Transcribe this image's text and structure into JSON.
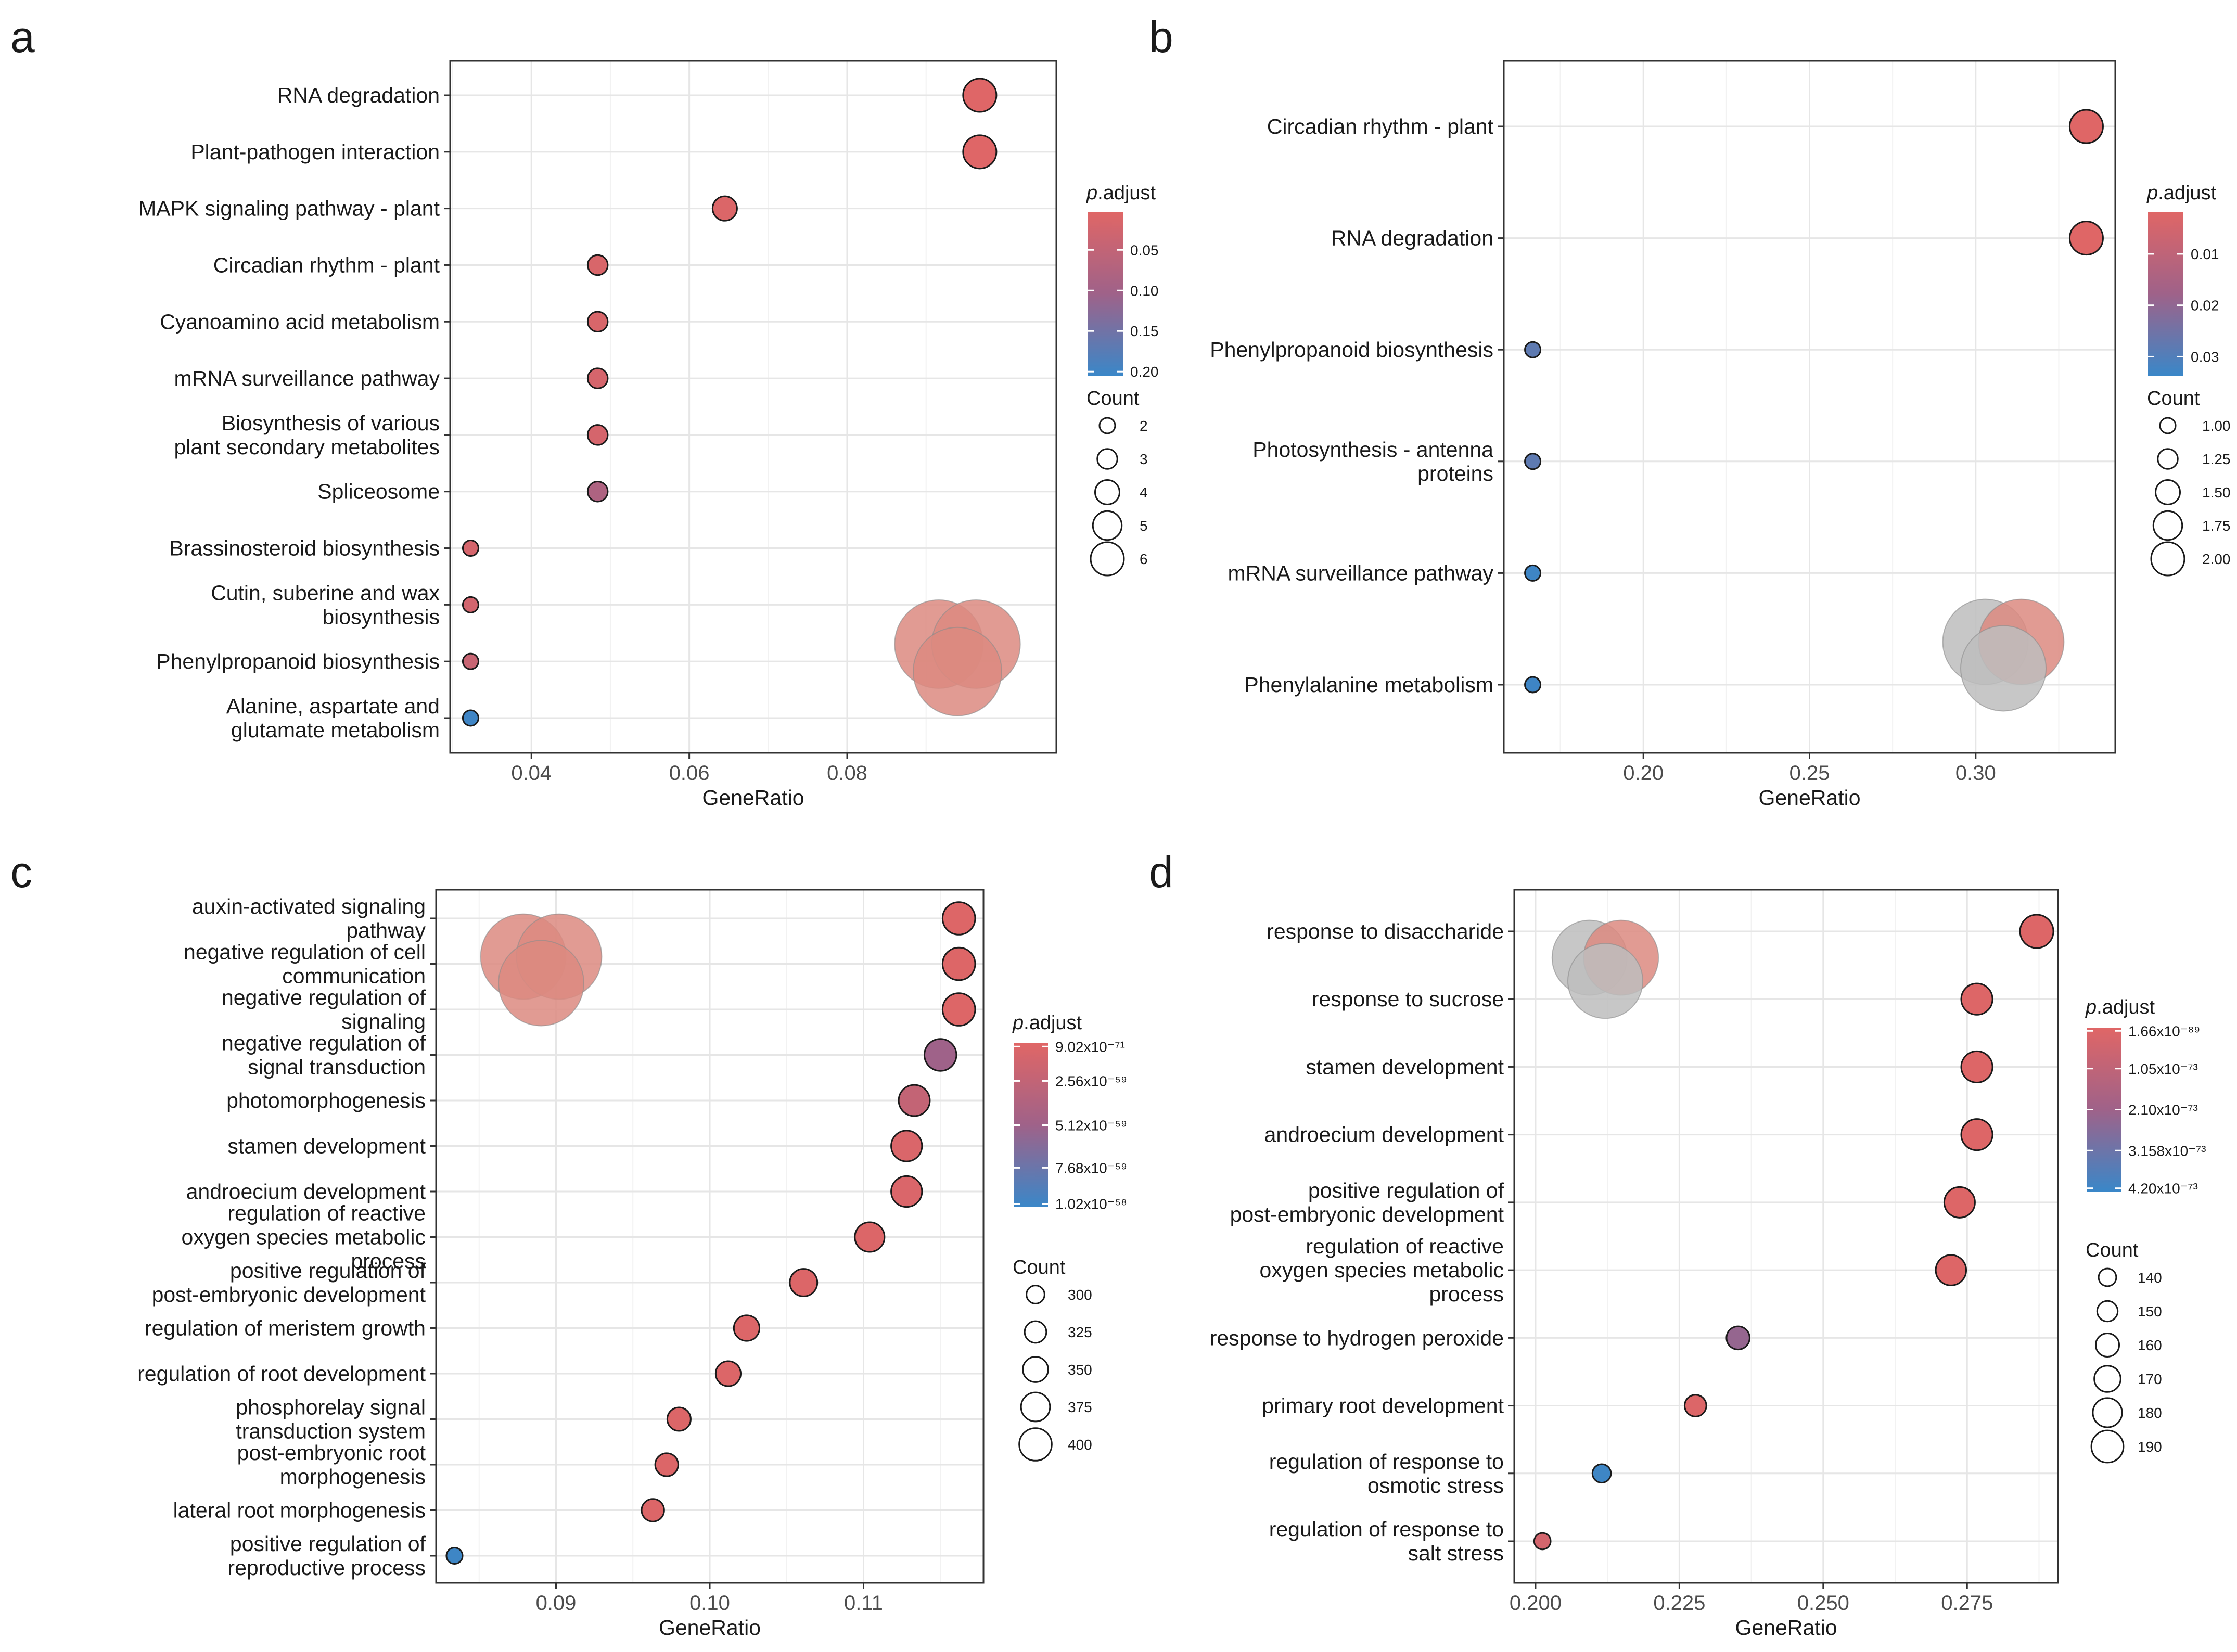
{
  "chart_data": [
    {
      "panel": "a",
      "type": "scatter",
      "xlabel": "GeneRatio",
      "xlim": [
        0.0297,
        0.1065
      ],
      "xticks": [
        0.04,
        0.06,
        0.08
      ],
      "xtick_labels": [
        "0.04",
        "0.06",
        "0.08"
      ],
      "colorbar": {
        "title": "p.adjust",
        "min": 0.003,
        "max": 0.205,
        "reverse": false,
        "ticks": [
          0.05,
          0.1,
          0.15,
          0.2
        ],
        "tick_labels": [
          "0.05",
          "0.10",
          "0.15",
          "0.20"
        ]
      },
      "size_legend": {
        "title": "Count",
        "min": 2,
        "max": 6,
        "values": [
          2,
          3,
          4,
          5,
          6
        ],
        "labels": [
          "2",
          "3",
          "4",
          "5",
          "6"
        ]
      },
      "venn_colors": [
        "#dc8a80",
        "#dc8a80",
        "#dc8a80"
      ],
      "points": [
        {
          "term": [
            "RNA degradation"
          ],
          "x": 0.0968,
          "padj": 0.005,
          "count": 6
        },
        {
          "term": [
            "Plant-pathogen interaction"
          ],
          "x": 0.0968,
          "padj": 0.005,
          "count": 6
        },
        {
          "term": [
            "MAPK signaling pathway - plant"
          ],
          "x": 0.0645,
          "padj": 0.01,
          "count": 4
        },
        {
          "term": [
            "Circadian rhythm - plant"
          ],
          "x": 0.0484,
          "padj": 0.015,
          "count": 3
        },
        {
          "term": [
            "Cyanoamino acid metabolism"
          ],
          "x": 0.0484,
          "padj": 0.015,
          "count": 3
        },
        {
          "term": [
            "mRNA surveillance pathway"
          ],
          "x": 0.0484,
          "padj": 0.02,
          "count": 3
        },
        {
          "term": [
            "Biosynthesis of various",
            "plant secondary metabolites"
          ],
          "x": 0.0484,
          "padj": 0.02,
          "count": 3
        },
        {
          "term": [
            "Spliceosome"
          ],
          "x": 0.0484,
          "padj": 0.08,
          "count": 3
        },
        {
          "term": [
            "Brassinosteroid biosynthesis"
          ],
          "x": 0.0323,
          "padj": 0.02,
          "count": 2
        },
        {
          "term": [
            "Cutin, suberine and wax",
            "biosynthesis"
          ],
          "x": 0.0323,
          "padj": 0.025,
          "count": 2
        },
        {
          "term": [
            "Phenylpropanoid biosynthesis"
          ],
          "x": 0.0323,
          "padj": 0.04,
          "count": 2
        },
        {
          "term": [
            "Alanine, aspartate and",
            "glutamate metabolism"
          ],
          "x": 0.0323,
          "padj": 0.2,
          "count": 2
        }
      ]
    },
    {
      "panel": "b",
      "type": "scatter",
      "xlabel": "GeneRatio",
      "xlim": [
        0.158,
        0.342
      ],
      "xticks": [
        0.2,
        0.25,
        0.3
      ],
      "xtick_labels": [
        "0.20",
        "0.25",
        "0.30"
      ],
      "colorbar": {
        "title": "p.adjust",
        "min": 0.0018,
        "max": 0.0337,
        "reverse": false,
        "ticks": [
          0.01,
          0.02,
          0.03
        ],
        "tick_labels": [
          "0.01",
          "0.02",
          "0.03"
        ]
      },
      "size_legend": {
        "title": "Count",
        "min": 1,
        "max": 2,
        "values": [
          1.0,
          1.25,
          1.5,
          1.75,
          2.0
        ],
        "labels": [
          "1.00",
          "1.25",
          "1.50",
          "1.75",
          "2.00"
        ]
      },
      "venn_colors": [
        "#bdbdbd",
        "#dc8a80",
        "#bdbdbd"
      ],
      "points": [
        {
          "term": [
            "Circadian rhythm - plant"
          ],
          "x": 0.3333,
          "padj": 0.002,
          "count": 2
        },
        {
          "term": [
            "RNA degradation"
          ],
          "x": 0.3333,
          "padj": 0.002,
          "count": 2
        },
        {
          "term": [
            "Phenylpropanoid biosynthesis"
          ],
          "x": 0.1667,
          "padj": 0.028,
          "count": 1
        },
        {
          "term": [
            "Photosynthesis - antenna",
            "proteins"
          ],
          "x": 0.1667,
          "padj": 0.028,
          "count": 1
        },
        {
          "term": [
            "mRNA surveillance pathway"
          ],
          "x": 0.1667,
          "padj": 0.033,
          "count": 1
        },
        {
          "term": [
            "Phenylalanine metabolism"
          ],
          "x": 0.1667,
          "padj": 0.033,
          "count": 1
        }
      ]
    },
    {
      "panel": "c",
      "type": "scatter",
      "xlabel": "GeneRatio",
      "xlim": [
        0.0822,
        0.1178
      ],
      "xticks": [
        0.09,
        0.1,
        0.11
      ],
      "xtick_labels": [
        "0.09",
        "0.10",
        "0.11"
      ],
      "colorbar": {
        "title": "p.adjust",
        "min": 0,
        "max": 1,
        "reverse": false,
        "ticks": [
          0.02,
          0.23,
          0.5,
          0.76,
          0.98
        ],
        "tick_labels": [
          "9.02x10⁻⁷¹",
          "2.56x10⁻⁵⁹",
          "5.12x10⁻⁵⁹",
          "7.68x10⁻⁵⁹",
          "1.02x10⁻⁵⁸"
        ]
      },
      "size_legend": {
        "title": "Count",
        "min": 283,
        "max": 405,
        "values": [
          300,
          325,
          350,
          375,
          400
        ],
        "labels": [
          "300",
          "325",
          "350",
          "375",
          "400"
        ]
      },
      "venn_colors": [
        "#dc8a80",
        "#dc8a80",
        "#dc8a80"
      ],
      "points": [
        {
          "term": [
            "auxin-activated signaling",
            "pathway"
          ],
          "x": 0.1162,
          "padj": 0.02,
          "count": 400
        },
        {
          "term": [
            "negative regulation of cell",
            "communication"
          ],
          "x": 0.1162,
          "padj": 0.02,
          "count": 400
        },
        {
          "term": [
            "negative regulation of",
            "signaling"
          ],
          "x": 0.1162,
          "padj": 0.02,
          "count": 400
        },
        {
          "term": [
            "negative regulation of",
            "signal transduction"
          ],
          "x": 0.115,
          "padj": 0.5,
          "count": 396
        },
        {
          "term": [
            "photomorphogenesis"
          ],
          "x": 0.1133,
          "padj": 0.22,
          "count": 390
        },
        {
          "term": [
            "stamen development"
          ],
          "x": 0.1128,
          "padj": 0.05,
          "count": 388
        },
        {
          "term": [
            "androecium development"
          ],
          "x": 0.1128,
          "padj": 0.05,
          "count": 388
        },
        {
          "term": [
            "regulation of reactive",
            "oxygen species metabolic",
            "process"
          ],
          "x": 0.1104,
          "padj": 0.03,
          "count": 380
        },
        {
          "term": [
            "positive regulation of",
            "post-embryonic development"
          ],
          "x": 0.1061,
          "padj": 0.03,
          "count": 365
        },
        {
          "term": [
            "regulation of meristem growth"
          ],
          "x": 0.1024,
          "padj": 0.03,
          "count": 352
        },
        {
          "term": [
            "regulation of root development"
          ],
          "x": 0.1012,
          "padj": 0.03,
          "count": 348
        },
        {
          "term": [
            "phosphorelay signal",
            "transduction system"
          ],
          "x": 0.098,
          "padj": 0.03,
          "count": 337
        },
        {
          "term": [
            "post-embryonic root",
            "morphogenesis"
          ],
          "x": 0.0972,
          "padj": 0.03,
          "count": 334
        },
        {
          "term": [
            "lateral root morphogenesis"
          ],
          "x": 0.0963,
          "padj": 0.03,
          "count": 331
        },
        {
          "term": [
            "positive regulation of",
            "reproductive process"
          ],
          "x": 0.0834,
          "padj": 0.98,
          "count": 287
        }
      ]
    },
    {
      "panel": "d",
      "type": "scatter",
      "xlabel": "GeneRatio",
      "xlim": [
        0.1963,
        0.2908
      ],
      "xticks": [
        0.2,
        0.225,
        0.25,
        0.275
      ],
      "xtick_labels": [
        "0.200",
        "0.225",
        "0.250",
        "0.275"
      ],
      "colorbar": {
        "title": "p.adjust",
        "min": 0,
        "max": 1,
        "reverse": false,
        "ticks": [
          0.02,
          0.25,
          0.5,
          0.75,
          0.98
        ],
        "tick_labels": [
          "1.66x10⁻⁸⁹",
          "1.05x10⁻⁷³",
          "2.10x10⁻⁷³",
          "3.158x10⁻⁷³",
          "4.20x10⁻⁷³"
        ]
      },
      "size_legend": {
        "title": "Count",
        "min": 133,
        "max": 194,
        "values": [
          140,
          150,
          160,
          170,
          180,
          190
        ],
        "labels": [
          "140",
          "150",
          "160",
          "170",
          "180",
          "190"
        ]
      },
      "venn_colors": [
        "#bdbdbd",
        "#dc8a80",
        "#bdbdbd"
      ],
      "points": [
        {
          "term": [
            "response to disaccharide"
          ],
          "x": 0.2871,
          "padj": 0.02,
          "count": 194
        },
        {
          "term": [
            "response to sucrose"
          ],
          "x": 0.2767,
          "padj": 0.02,
          "count": 187
        },
        {
          "term": [
            "stamen development"
          ],
          "x": 0.2767,
          "padj": 0.02,
          "count": 187
        },
        {
          "term": [
            "androecium development"
          ],
          "x": 0.2767,
          "padj": 0.02,
          "count": 187
        },
        {
          "term": [
            "positive regulation of",
            "post-embryonic development"
          ],
          "x": 0.2737,
          "padj": 0.02,
          "count": 185
        },
        {
          "term": [
            "regulation of reactive",
            "oxygen species metabolic",
            "process"
          ],
          "x": 0.2722,
          "padj": 0.02,
          "count": 184
        },
        {
          "term": [
            "response to hydrogen peroxide"
          ],
          "x": 0.2352,
          "padj": 0.55,
          "count": 159
        },
        {
          "term": [
            "primary root development"
          ],
          "x": 0.2278,
          "padj": 0.03,
          "count": 154
        },
        {
          "term": [
            "regulation of response to",
            "osmotic stress"
          ],
          "x": 0.2115,
          "padj": 0.98,
          "count": 143
        },
        {
          "term": [
            "regulation of response to",
            "salt stress"
          ],
          "x": 0.2012,
          "padj": 0.1,
          "count": 136
        }
      ]
    }
  ]
}
